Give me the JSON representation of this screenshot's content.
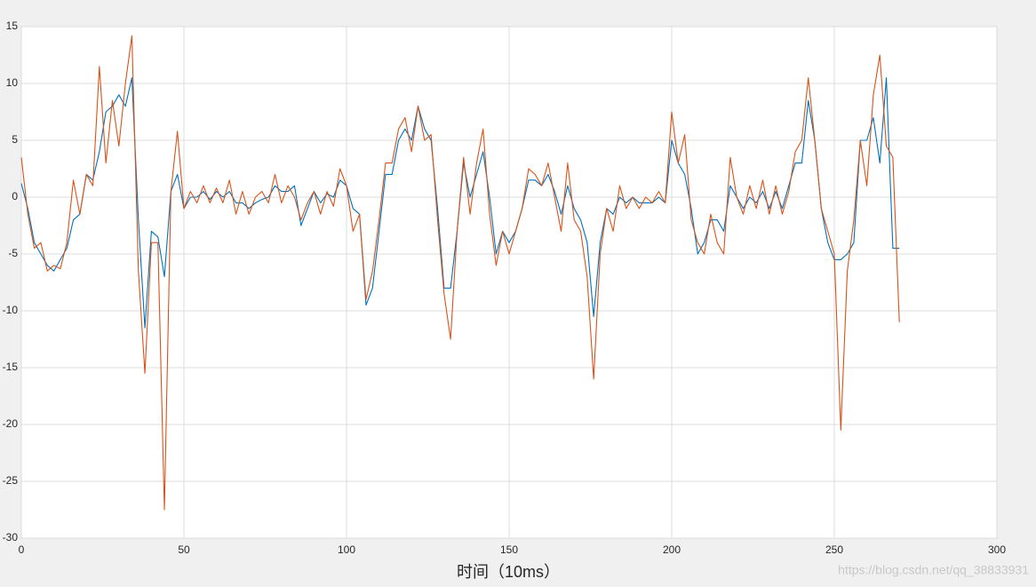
{
  "chart_data": {
    "type": "line",
    "x_label": "时间（10ms）",
    "annotation": "https://blog.csdn.net/qq_38833931",
    "x": [
      0,
      2,
      4,
      6,
      8,
      10,
      12,
      14,
      16,
      18,
      20,
      22,
      24,
      26,
      28,
      30,
      32,
      34,
      36,
      38,
      40,
      42,
      44,
      46,
      48,
      50,
      52,
      54,
      56,
      58,
      60,
      62,
      64,
      66,
      68,
      70,
      72,
      74,
      76,
      78,
      80,
      82,
      84,
      86,
      88,
      90,
      92,
      94,
      96,
      98,
      100,
      102,
      104,
      106,
      108,
      110,
      112,
      114,
      116,
      118,
      120,
      122,
      124,
      126,
      128,
      130,
      132,
      134,
      136,
      138,
      140,
      142,
      144,
      146,
      148,
      150,
      152,
      154,
      156,
      158,
      160,
      162,
      164,
      166,
      168,
      170,
      172,
      174,
      176,
      178,
      180,
      182,
      184,
      186,
      188,
      190,
      192,
      194,
      196,
      198,
      200,
      202,
      204,
      206,
      208,
      210,
      212,
      214,
      216,
      218,
      220,
      222,
      224,
      226,
      228,
      230,
      232,
      234,
      236,
      238,
      240,
      242,
      244,
      246,
      248,
      250,
      252,
      254,
      256,
      258,
      260,
      262,
      264,
      266,
      268,
      270
    ],
    "series": [
      {
        "color": "#0072BD",
        "values": [
          1.2,
          -1,
          -4,
          -5,
          -6,
          -6.5,
          -5.5,
          -4.5,
          -2,
          -1.5,
          2,
          1.5,
          4,
          7.5,
          8,
          9,
          8,
          10.5,
          -2,
          -11.5,
          -3,
          -3.5,
          -7,
          0.5,
          2,
          -1,
          0,
          0,
          0.5,
          -0.2,
          0.5,
          0,
          0.5,
          -0.5,
          -0.5,
          -1,
          -0.5,
          -0.2,
          0,
          1,
          0.5,
          0.5,
          1,
          -2.5,
          -1,
          0.5,
          -0.5,
          0.3,
          0,
          1.5,
          1,
          -1,
          -1.5,
          -9.5,
          -8,
          -3,
          2,
          2,
          5,
          6,
          5,
          8,
          6,
          5,
          -1,
          -8,
          -8,
          -3,
          3,
          0,
          2,
          4,
          0,
          -5,
          -3,
          -4,
          -3,
          -1,
          1.5,
          1.5,
          1,
          2,
          0.5,
          -1.5,
          1,
          -1,
          -2,
          -4,
          -10.5,
          -4,
          -1,
          -1.5,
          0,
          -0.5,
          0,
          -0.5,
          -0.5,
          -0.5,
          0,
          -0.5,
          5,
          3,
          2,
          -1,
          -5,
          -4,
          -2,
          -2,
          -3,
          1,
          0,
          -1,
          0,
          -0.5,
          0.5,
          -1,
          0.5,
          -1,
          1,
          3,
          3,
          8.5,
          5,
          -1,
          -4,
          -5.5,
          -5.5,
          -5,
          -4,
          5,
          5,
          7,
          3,
          10.5,
          -4.5,
          -4.5
        ]
      },
      {
        "color": "#D95319",
        "values": [
          3.5,
          -1.5,
          -4.5,
          -4,
          -6.5,
          -6,
          -6.3,
          -4,
          1.5,
          -1.5,
          2,
          1,
          11.5,
          3,
          8.5,
          4.5,
          10,
          14.2,
          -6.5,
          -15.5,
          -4,
          -4,
          -27.5,
          0.5,
          5.8,
          -1,
          0.5,
          -0.5,
          1,
          -0.5,
          0.8,
          -0.5,
          1.5,
          -1.5,
          0.5,
          -1.5,
          0,
          0.5,
          -0.5,
          2,
          -0.5,
          1,
          0,
          -2,
          -0.5,
          0.5,
          -1.5,
          0.5,
          -0.8,
          2.5,
          1,
          -3,
          -1.5,
          -9,
          -6.5,
          -2,
          3,
          3,
          6,
          7,
          4,
          8,
          5,
          5.5,
          -2,
          -8.5,
          -12.5,
          -3,
          3.5,
          -1.5,
          3,
          6,
          -1.5,
          -6,
          -3,
          -5,
          -3,
          -1,
          2.5,
          2,
          1,
          3,
          0,
          -3,
          3,
          -2,
          -3,
          -7,
          -16,
          -5,
          -1,
          -3,
          1,
          -1,
          0,
          -1,
          0,
          -0.5,
          0.5,
          -0.5,
          7.5,
          3,
          5.5,
          -2,
          -4,
          -5,
          -1.5,
          -4,
          -5,
          3.5,
          0,
          -1.5,
          1,
          -1,
          1.5,
          -1.5,
          1,
          -1.5,
          0.5,
          4,
          5,
          10.5,
          5,
          -1,
          -3,
          -5,
          -20.5,
          -6.5,
          -2,
          5,
          1,
          9,
          12.5,
          4.5,
          3.5,
          -11
        ]
      }
    ],
    "xlim": [
      0,
      300
    ],
    "xticks": [
      0,
      50,
      100,
      150,
      200,
      250,
      300
    ],
    "ylim": [
      -30,
      15
    ],
    "yticks": [
      -30,
      -25,
      -20,
      -15,
      -10,
      -5,
      0,
      5,
      10,
      15
    ],
    "grid": true
  }
}
